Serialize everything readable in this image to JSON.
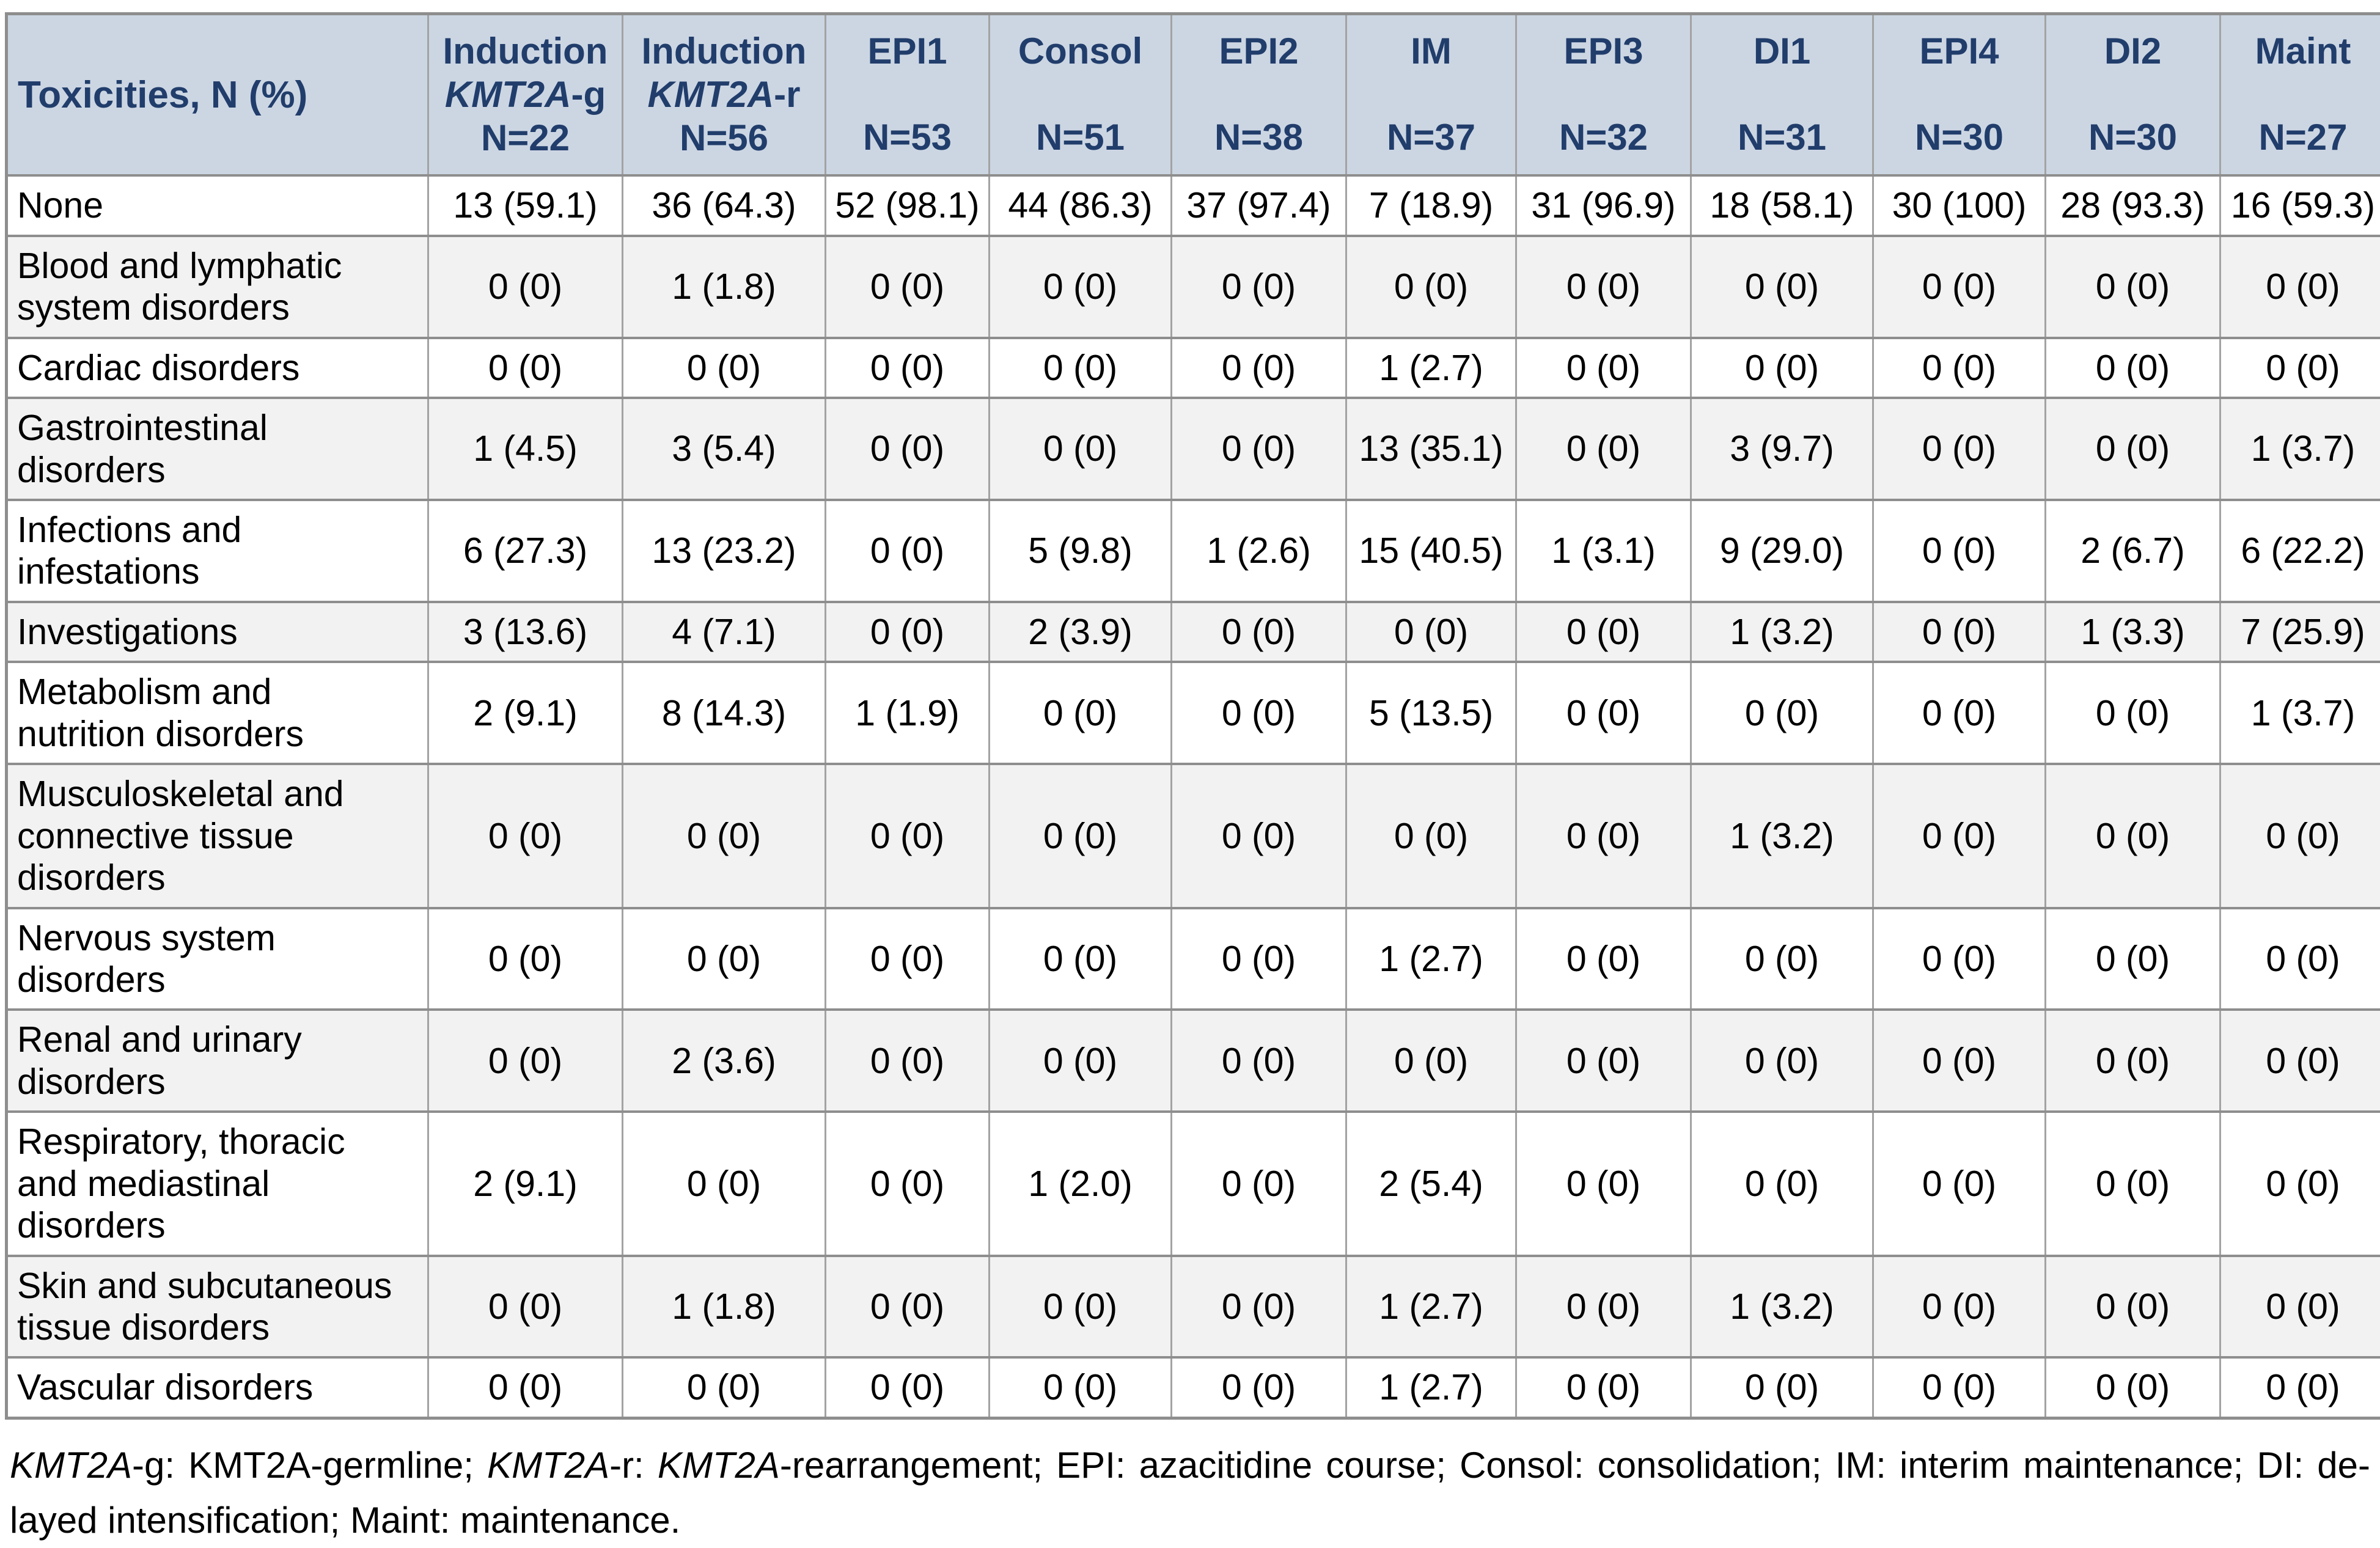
{
  "table": {
    "corner_label": "Toxicities, N (%)",
    "columns": [
      {
        "top": "Induction",
        "gene": "KMT2A",
        "gene_suffix": "-g",
        "n": "N=22"
      },
      {
        "top": "Induction",
        "gene": "KMT2A",
        "gene_suffix": "-r",
        "n": "N=56"
      },
      {
        "top": "EPI1",
        "n": "N=53"
      },
      {
        "top": "Consol",
        "n": "N=51"
      },
      {
        "top": "EPI2",
        "n": "N=38"
      },
      {
        "top": "IM",
        "n": "N=37"
      },
      {
        "top": "EPI3",
        "n": "N=32"
      },
      {
        "top": "DI1",
        "n": "N=31"
      },
      {
        "top": "EPI4",
        "n": "N=30"
      },
      {
        "top": "DI2",
        "n": "N=30"
      },
      {
        "top": "Maint",
        "n": "N=27"
      }
    ],
    "rows": [
      {
        "label": "None",
        "values": [
          "13 (59.1)",
          "36 (64.3)",
          "52 (98.1)",
          "44 (86.3)",
          "37 (97.4)",
          "7 (18.9)",
          "31 (96.9)",
          "18 (58.1)",
          "30 (100)",
          "28 (93.3)",
          "16 (59.3)"
        ]
      },
      {
        "label": "Blood and lymphatic system disorders",
        "values": [
          "0 (0)",
          "1 (1.8)",
          "0 (0)",
          "0 (0)",
          "0 (0)",
          "0 (0)",
          "0 (0)",
          "0 (0)",
          "0 (0)",
          "0 (0)",
          "0 (0)"
        ]
      },
      {
        "label": "Cardiac disorders",
        "values": [
          "0 (0)",
          "0 (0)",
          "0 (0)",
          "0 (0)",
          "0 (0)",
          "1 (2.7)",
          "0 (0)",
          "0 (0)",
          "0 (0)",
          "0 (0)",
          "0 (0)"
        ]
      },
      {
        "label": "Gastrointestinal disorders",
        "values": [
          "1 (4.5)",
          "3 (5.4)",
          "0 (0)",
          "0 (0)",
          "0 (0)",
          "13 (35.1)",
          "0 (0)",
          "3 (9.7)",
          "0 (0)",
          "0 (0)",
          "1 (3.7)"
        ]
      },
      {
        "label": "Infections and infestations",
        "values": [
          "6 (27.3)",
          "13 (23.2)",
          "0 (0)",
          "5 (9.8)",
          "1 (2.6)",
          "15 (40.5)",
          "1 (3.1)",
          "9 (29.0)",
          "0 (0)",
          "2 (6.7)",
          "6 (22.2)"
        ]
      },
      {
        "label": "Investigations",
        "values": [
          "3 (13.6)",
          "4 (7.1)",
          "0 (0)",
          "2 (3.9)",
          "0 (0)",
          "0 (0)",
          "0 (0)",
          "1 (3.2)",
          "0 (0)",
          "1 (3.3)",
          "7 (25.9)"
        ]
      },
      {
        "label": "Metabolism and nutrition disorders",
        "values": [
          "2 (9.1)",
          "8 (14.3)",
          "1 (1.9)",
          "0 (0)",
          "0 (0)",
          "5 (13.5)",
          "0 (0)",
          "0 (0)",
          "0 (0)",
          "0 (0)",
          "1 (3.7)"
        ]
      },
      {
        "label": "Musculoskeletal and connective tissue disorders",
        "values": [
          "0 (0)",
          "0 (0)",
          "0 (0)",
          "0 (0)",
          "0 (0)",
          "0 (0)",
          "0 (0)",
          "1 (3.2)",
          "0 (0)",
          "0 (0)",
          "0 (0)"
        ]
      },
      {
        "label": "Nervous system disorders",
        "values": [
          "0 (0)",
          "0 (0)",
          "0 (0)",
          "0 (0)",
          "0 (0)",
          "1 (2.7)",
          "0 (0)",
          "0 (0)",
          "0 (0)",
          "0 (0)",
          "0 (0)"
        ]
      },
      {
        "label": "Renal and urinary disorders",
        "values": [
          "0 (0)",
          "2 (3.6)",
          "0 (0)",
          "0 (0)",
          "0 (0)",
          "0 (0)",
          "0 (0)",
          "0 (0)",
          "0 (0)",
          "0 (0)",
          "0 (0)"
        ]
      },
      {
        "label": "Respiratory, thoracic and mediastinal disorders",
        "values": [
          "2 (9.1)",
          "0 (0)",
          "0 (0)",
          "1 (2.0)",
          "0 (0)",
          "2 (5.4)",
          "0 (0)",
          "0 (0)",
          "0 (0)",
          "0 (0)",
          "0 (0)"
        ]
      },
      {
        "label": "Skin and subcutaneous tissue disorders",
        "values": [
          "0 (0)",
          "1 (1.8)",
          "0 (0)",
          "0 (0)",
          "0 (0)",
          "1 (2.7)",
          "0 (0)",
          "1 (3.2)",
          "0 (0)",
          "0 (0)",
          "0 (0)"
        ]
      },
      {
        "label": "Vascular disorders",
        "values": [
          "0 (0)",
          "0 (0)",
          "0 (0)",
          "0 (0)",
          "0 (0)",
          "1 (2.7)",
          "0 (0)",
          "0 (0)",
          "0 (0)",
          "0 (0)",
          "0 (0)"
        ]
      }
    ]
  },
  "footnote": {
    "line1_segments": [
      {
        "text": "KMT2A",
        "italic": true
      },
      {
        "text": "-g: KMT2A-germline; ",
        "italic": false
      },
      {
        "text": "KMT2A",
        "italic": true
      },
      {
        "text": "-r: ",
        "italic": false
      },
      {
        "text": "KMT2A",
        "italic": true
      },
      {
        "text": "-rearrangement; EPI: azacitidine course; Consol: consolidation; IM: interim maintenance; DI: de-",
        "italic": false
      }
    ],
    "line2": "layed intensification; Maint: maintenance."
  },
  "colors": {
    "header_bg": "#ccd6e3",
    "header_text": "#213d6b",
    "stripe_bg": "#f2f2f2",
    "row_bg": "#ffffff",
    "border_horizontal": "#8e8e8e",
    "border_vertical": "#a3a3a3",
    "body_text": "#000000"
  }
}
